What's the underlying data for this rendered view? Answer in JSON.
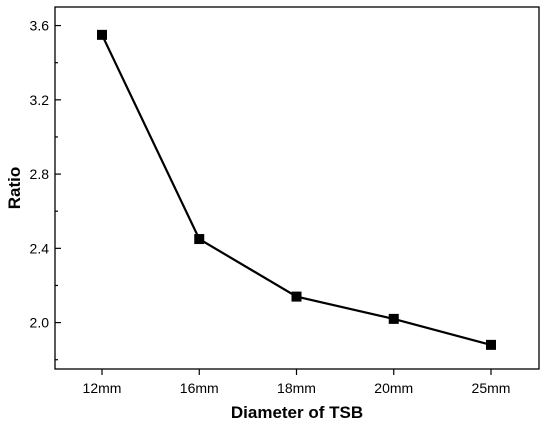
{
  "chart_data": {
    "type": "line",
    "title": "",
    "xlabel": "Diameter of TSB",
    "ylabel": "Ratio",
    "categories": [
      "12mm",
      "16mm",
      "18mm",
      "20mm",
      "25mm"
    ],
    "series": [
      {
        "values": [
          3.55,
          2.45,
          2.14,
          2.02,
          1.88
        ],
        "color": "#000000",
        "marker": "square"
      }
    ],
    "ylim": [
      1.75,
      3.7
    ],
    "yticks": [
      2.0,
      2.4,
      2.8,
      3.2,
      3.6
    ],
    "ytick_labels": [
      "2.0",
      "2.4",
      "2.8",
      "3.2",
      "3.6"
    ],
    "grid": false,
    "legend": "none"
  }
}
